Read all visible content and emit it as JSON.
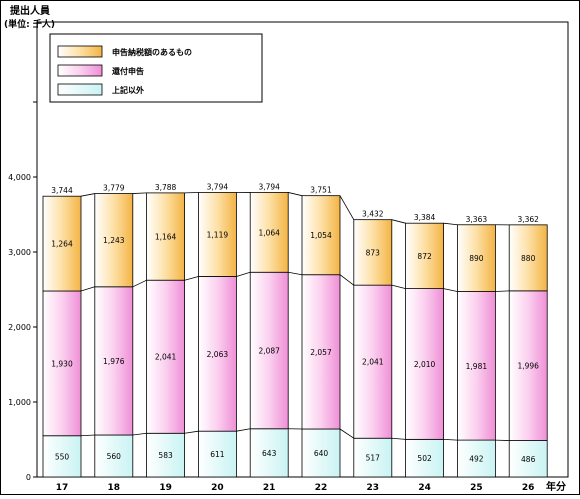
{
  "chart_data": {
    "type": "bar",
    "stacked": true,
    "ylabel": "提出人員",
    "unit_label": "(単位: 千人)",
    "xunit": "年分",
    "categories": [
      "17",
      "18",
      "19",
      "20",
      "21",
      "22",
      "23",
      "24",
      "25",
      "26"
    ],
    "series": [
      {
        "name": "上記以外",
        "color": "#e6fbfb",
        "values": [
          550,
          560,
          583,
          611,
          643,
          640,
          517,
          502,
          492,
          486
        ]
      },
      {
        "name": "還付申告",
        "color": "#f7b5e6",
        "values": [
          1930,
          1976,
          2041,
          2063,
          2087,
          2057,
          2041,
          2010,
          1981,
          1996
        ]
      },
      {
        "name": "申告納税額のあるもの",
        "color": "#fcd582",
        "values": [
          1264,
          1243,
          1164,
          1119,
          1064,
          1054,
          873,
          872,
          890,
          880
        ]
      }
    ],
    "totals": [
      "3,744",
      "3,779",
      "3,788",
      "3,794",
      "3,794",
      "3,751",
      "3,432",
      "3,384",
      "3,363",
      "3,362"
    ],
    "segment_labels": [
      [
        "550",
        "560",
        "583",
        "611",
        "643",
        "640",
        "517",
        "502",
        "492",
        "486"
      ],
      [
        "1,930",
        "1,976",
        "2,041",
        "2,063",
        "2,087",
        "2,057",
        "2,041",
        "2,010",
        "1,981",
        "1,996"
      ],
      [
        "1,264",
        "1,243",
        "1,164",
        "1,119",
        "1,064",
        "1,054",
        "873",
        "872",
        "890",
        "880"
      ]
    ],
    "yticks": [
      0,
      1000,
      2000,
      3000,
      4000
    ],
    "ytick_labels": [
      "0",
      "1,000",
      "2,000",
      "3,000",
      "4,000"
    ],
    "ylim": [
      0,
      6000
    ],
    "legend_position": "top-left",
    "legend_order": [
      "申告納税額のあるもの",
      "還付申告",
      "上記以外"
    ],
    "grid": false
  }
}
